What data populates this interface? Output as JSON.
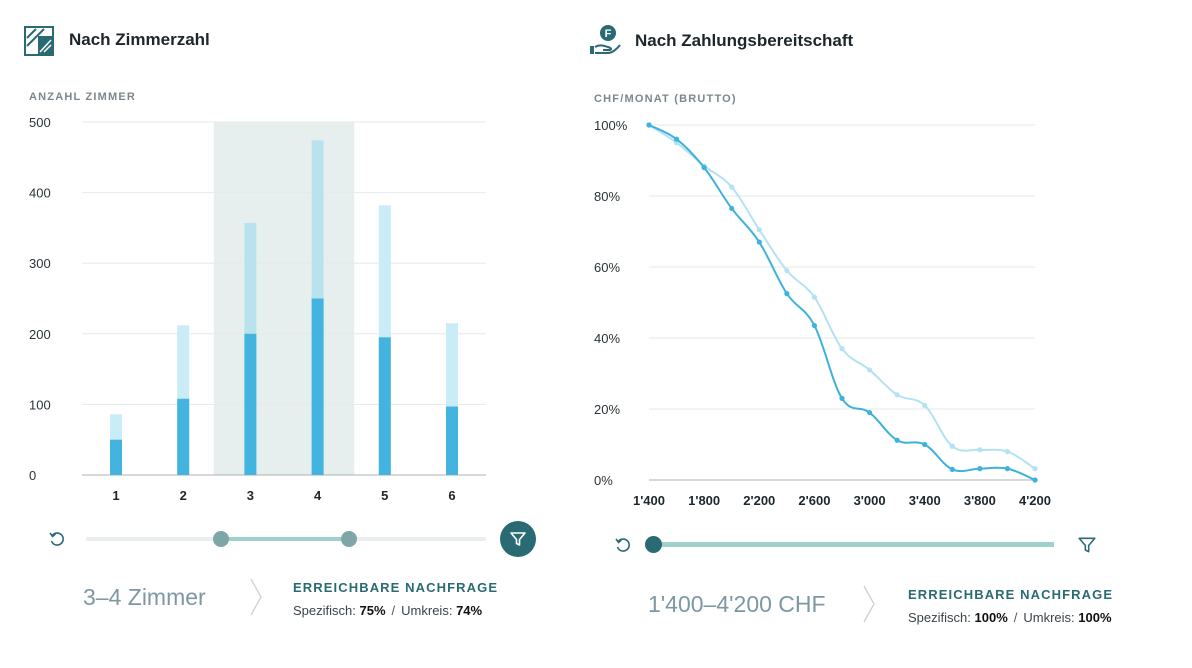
{
  "left_panel": {
    "title": "Nach Zimmerzahl",
    "icon": "floorplan-icon",
    "axis_caption": "ANZAHL ZIMMER",
    "range_text": "3–4 Zimmer",
    "summary_title": "ERREICHBARE NACHFRAGE",
    "specific_label": "Spezifisch:",
    "specific_value": "75%",
    "separator": "/",
    "area_label": "Umkreis:",
    "area_value": "74%"
  },
  "right_panel": {
    "title": "Nach Zahlungsbereitschaft",
    "icon": "hand-coin-icon",
    "axis_caption": "CHF/MONAT (BRUTTO)",
    "range_text": "1'400–4'200 CHF",
    "summary_title": "ERREICHBARE NACHFRAGE",
    "specific_label": "Spezifisch:",
    "specific_value": "100%",
    "separator": "/",
    "area_label": "Umkreis:",
    "area_value": "100%"
  },
  "colors": {
    "bar_dark": "#43b4e0",
    "bar_light_total": "#b9e2ef",
    "bar_light_out": "#c9ecf7",
    "highlight": "#e6efee",
    "line_dark": "#3eb1dd",
    "line_light": "#b3e2f2",
    "accent": "#2a6b73",
    "slider_fill": "#9fd0cc"
  },
  "chart_data": [
    {
      "type": "bar",
      "categories": [
        "1",
        "2",
        "3",
        "4",
        "5",
        "6"
      ],
      "ylim": [
        0,
        500
      ],
      "yticks": [
        0,
        100,
        200,
        300,
        400,
        500
      ],
      "highlighted_categories": [
        "3",
        "4"
      ],
      "series": [
        {
          "values": [
            50,
            108,
            200,
            250,
            195,
            97
          ]
        },
        {
          "values": [
            86,
            212,
            357,
            474,
            382,
            215
          ]
        }
      ],
      "range_slider": {
        "min": "3",
        "max": "4"
      }
    },
    {
      "type": "line",
      "x": [
        1400,
        1600,
        1800,
        2000,
        2200,
        2400,
        2600,
        2800,
        3000,
        3200,
        3400,
        3600,
        3800,
        4000,
        4200
      ],
      "xtick_labels": [
        "1'400",
        "1'800",
        "2'200",
        "2'600",
        "3'000",
        "3'400",
        "3'800",
        "4'200"
      ],
      "xticks": [
        1400,
        1800,
        2200,
        2600,
        3000,
        3400,
        3800,
        4200
      ],
      "ytick_labels": [
        "0%",
        "20%",
        "40%",
        "60%",
        "80%",
        "100%"
      ],
      "ylim": [
        0,
        100
      ],
      "yticks": [
        0,
        20,
        40,
        60,
        80,
        100
      ],
      "series": [
        {
          "values": [
            100,
            96,
            88,
            76.5,
            67,
            52.5,
            43.5,
            23,
            19,
            11.2,
            10,
            3,
            3.2,
            3.2,
            0
          ]
        },
        {
          "values": [
            100,
            95,
            88.5,
            82.5,
            70.5,
            59,
            51.5,
            37,
            31,
            24,
            21,
            9.5,
            8.5,
            8,
            3.2
          ]
        }
      ],
      "range_slider": {
        "min": 1400,
        "max": 4200
      }
    }
  ]
}
